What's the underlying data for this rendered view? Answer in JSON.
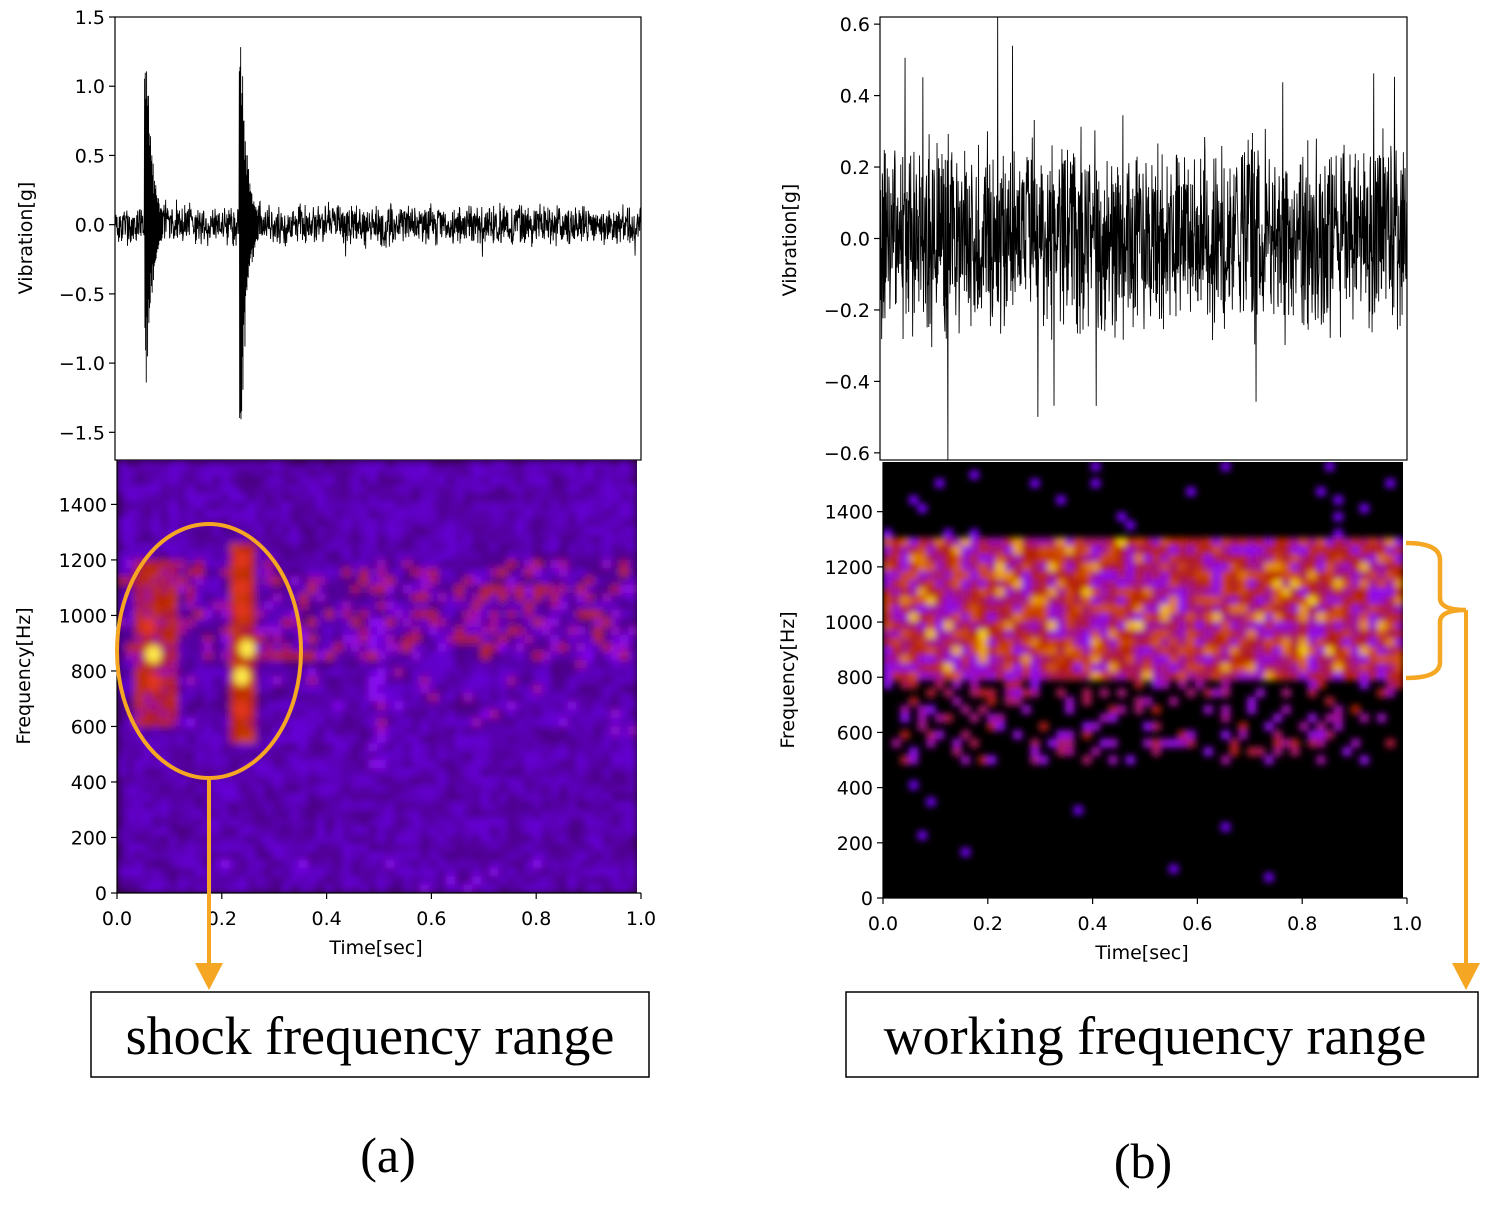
{
  "annotations": {
    "left_label": "shock frequency range",
    "right_label": "working frequency range",
    "accent_color": "#f5a623"
  },
  "panel_labels": {
    "a": "(a)",
    "b": "(b)"
  },
  "chart_data": [
    {
      "id": "a-waveform",
      "type": "line",
      "ylabel": "Vibration[g]",
      "xlim": [
        0.0,
        1.0
      ],
      "ylim": [
        -1.7,
        1.5
      ],
      "yticks": [
        "1.5",
        "1.0",
        "0.5",
        "0.0",
        "−0.5",
        "−1.0",
        "−1.5"
      ],
      "ytick_values": [
        1.5,
        1.0,
        0.5,
        0.0,
        -0.5,
        -1.0,
        -1.5
      ],
      "baseline_amplitude": 0.12,
      "peak_amplitude": 0.2,
      "impacts": [
        {
          "t": 0.06,
          "peak": 1.28,
          "trough": -1.22
        },
        {
          "t": 0.24,
          "peak": 1.35,
          "trough": -1.68
        }
      ],
      "line_color": "#000000"
    },
    {
      "id": "a-spectrogram",
      "type": "heatmap",
      "xlabel": "Time[sec]",
      "ylabel": "Frequency[Hz]",
      "xlim": [
        0.0,
        1.0
      ],
      "ylim": [
        0,
        1560
      ],
      "xticks": [
        "0.0",
        "0.2",
        "0.4",
        "0.6",
        "0.8",
        "1.0"
      ],
      "xtick_values": [
        0.0,
        0.2,
        0.4,
        0.6,
        0.8,
        1.0
      ],
      "yticks": [
        "0",
        "200",
        "400",
        "600",
        "800",
        "1000",
        "1200",
        "1400"
      ],
      "ytick_values": [
        0,
        200,
        400,
        600,
        800,
        1000,
        1200,
        1400
      ],
      "colormap": "gnuplot",
      "background": "#1c0715",
      "band_hz": [
        600,
        1200
      ],
      "hot_spots": [
        {
          "t": 0.07,
          "f": 860,
          "level": "high"
        },
        {
          "t": 0.07,
          "f": 760,
          "level": "mid"
        },
        {
          "t": 0.06,
          "f": 960,
          "level": "mid"
        },
        {
          "t": 0.24,
          "f": 1200,
          "level": "mid"
        },
        {
          "t": 0.24,
          "f": 1100,
          "level": "mid"
        },
        {
          "t": 0.24,
          "f": 1020,
          "level": "mid"
        },
        {
          "t": 0.25,
          "f": 880,
          "level": "high"
        },
        {
          "t": 0.24,
          "f": 780,
          "level": "high"
        },
        {
          "t": 0.24,
          "f": 660,
          "level": "mid"
        }
      ]
    },
    {
      "id": "b-waveform",
      "type": "line",
      "ylabel": "Vibration[g]",
      "xlim": [
        0.0,
        1.0
      ],
      "ylim": [
        -0.62,
        0.62
      ],
      "yticks": [
        "0.6",
        "0.4",
        "0.2",
        "0.0",
        "−0.2",
        "−0.4",
        "−0.6"
      ],
      "ytick_values": [
        0.6,
        0.4,
        0.2,
        0.0,
        -0.2,
        -0.4,
        -0.6
      ],
      "baseline_amplitude": 0.22,
      "peak_amplitude": 0.56,
      "line_color": "#000000"
    },
    {
      "id": "b-spectrogram",
      "type": "heatmap",
      "xlabel": "Time[sec]",
      "ylabel": "Frequency[Hz]",
      "xlim": [
        0.0,
        1.0
      ],
      "ylim": [
        0,
        1580
      ],
      "xticks": [
        "0.0",
        "0.2",
        "0.4",
        "0.6",
        "0.8",
        "1.0"
      ],
      "xtick_values": [
        0.0,
        0.2,
        0.4,
        0.6,
        0.8,
        1.0
      ],
      "yticks": [
        "0",
        "200",
        "400",
        "600",
        "800",
        "1000",
        "1200",
        "1400"
      ],
      "ytick_values": [
        0,
        200,
        400,
        600,
        800,
        1000,
        1200,
        1400
      ],
      "colormap": "gnuplot",
      "background": "#000000",
      "band_hz": [
        800,
        1300
      ]
    }
  ]
}
